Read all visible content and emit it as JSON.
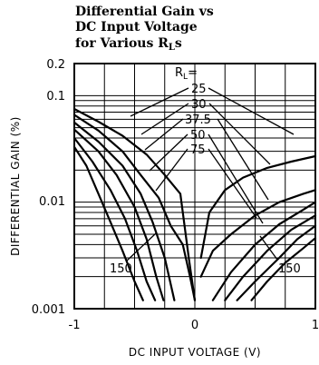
{
  "chart_data": {
    "type": "line",
    "title_lines": [
      "Differential Gain vs",
      "DC Input Voltage",
      "for Various R"
    ],
    "title_subscript": "L",
    "title_suffix": "s",
    "xlabel": "DC INPUT VOLTAGE (V)",
    "ylabel": "DIFFERENTIAL GAIN (%)",
    "xlim": [
      -1,
      1
    ],
    "ylim": [
      0.001,
      0.2
    ],
    "yscale": "log",
    "grid": true,
    "x_ticks": [
      "-1",
      "0",
      "1"
    ],
    "y_ticks": [
      "0.001",
      "0.01",
      "0.1",
      "0.2"
    ],
    "legend_header": "R",
    "legend_header_sub": "L",
    "legend_header_suffix": "=",
    "labels": [
      "25",
      "30",
      "37.5",
      "50",
      "75"
    ],
    "annotations": {
      "left": "150",
      "right": "150"
    },
    "series": [
      {
        "label": "25",
        "x": [
          -1.0,
          -0.8,
          -0.6,
          -0.4,
          -0.25,
          -0.12,
          -0.05,
          0.0,
          0.05,
          0.12,
          0.25,
          0.4,
          0.6,
          0.8,
          1.0
        ],
        "y": [
          0.075,
          0.057,
          0.042,
          0.028,
          0.018,
          0.012,
          0.003,
          0.0012,
          0.003,
          0.008,
          0.013,
          0.017,
          0.021,
          0.024,
          0.027
        ]
      },
      {
        "label": "30",
        "x": [
          -1.0,
          -0.8,
          -0.6,
          -0.45,
          -0.3,
          -0.2,
          -0.1,
          -0.04,
          0.0,
          0.05,
          0.15,
          0.3,
          0.5,
          0.7,
          0.9,
          1.0
        ],
        "y": [
          0.066,
          0.047,
          0.03,
          0.018,
          0.011,
          0.006,
          0.004,
          0.002,
          0.0012,
          0.002,
          0.0035,
          0.005,
          0.0075,
          0.01,
          0.012,
          0.013
        ]
      },
      {
        "label": "37.5",
        "x": [
          -1.0,
          -0.8,
          -0.6,
          -0.45,
          -0.35,
          -0.25,
          -0.17,
          0.15,
          0.3,
          0.5,
          0.7,
          0.9,
          1.0
        ],
        "y": [
          0.056,
          0.037,
          0.022,
          0.012,
          0.0065,
          0.003,
          0.0012,
          0.0012,
          0.0022,
          0.004,
          0.0062,
          0.0085,
          0.01
        ]
      },
      {
        "label": "50",
        "x": [
          -1.0,
          -0.8,
          -0.65,
          -0.5,
          -0.4,
          -0.32,
          -0.26,
          0.25,
          0.4,
          0.6,
          0.8,
          1.0
        ],
        "y": [
          0.048,
          0.03,
          0.018,
          0.009,
          0.0045,
          0.002,
          0.0012,
          0.0012,
          0.002,
          0.0035,
          0.0055,
          0.0075
        ]
      },
      {
        "label": "75",
        "x": [
          -1.0,
          -0.85,
          -0.7,
          -0.58,
          -0.48,
          -0.4,
          -0.33,
          0.35,
          0.5,
          0.7,
          0.85,
          1.0
        ],
        "y": [
          0.04,
          0.024,
          0.013,
          0.007,
          0.0035,
          0.0018,
          0.0012,
          0.0012,
          0.0018,
          0.003,
          0.0045,
          0.006
        ]
      },
      {
        "label": "150",
        "x": [
          -1.0,
          -0.9,
          -0.8,
          -0.7,
          -0.6,
          -0.5,
          -0.43,
          0.47,
          0.6,
          0.75,
          0.9,
          1.0
        ],
        "y": [
          0.033,
          0.022,
          0.012,
          0.0065,
          0.0035,
          0.0018,
          0.0012,
          0.0012,
          0.0018,
          0.0027,
          0.0037,
          0.0046
        ]
      }
    ]
  }
}
